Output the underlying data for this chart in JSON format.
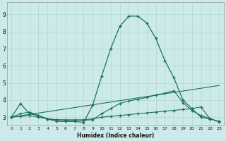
{
  "xlabel": "Humidex (Indice chaleur)",
  "background_color": "#cdeaea",
  "grid_color": "#b8d8d8",
  "line_color": "#1a7060",
  "xlim": [
    -0.5,
    23.5
  ],
  "ylim": [
    2.5,
    9.7
  ],
  "xticks": [
    0,
    1,
    2,
    3,
    4,
    5,
    6,
    7,
    8,
    9,
    10,
    11,
    12,
    13,
    14,
    15,
    16,
    17,
    18,
    19,
    20,
    21,
    22,
    23
  ],
  "yticks": [
    3,
    4,
    5,
    6,
    7,
    8,
    9
  ],
  "series1_x": [
    0,
    1,
    2,
    3,
    4,
    5,
    6,
    7,
    8,
    9,
    10,
    11,
    12,
    13,
    14,
    15,
    16,
    17,
    18,
    19,
    20,
    21,
    22,
    23
  ],
  "series1_y": [
    3.0,
    3.8,
    3.2,
    3.1,
    2.9,
    2.75,
    2.75,
    2.75,
    2.7,
    3.7,
    5.4,
    7.0,
    8.3,
    8.9,
    8.9,
    8.5,
    7.6,
    6.3,
    5.3,
    4.0,
    3.5,
    3.0,
    2.9,
    2.75
  ],
  "series2_x": [
    0,
    1,
    2,
    3,
    4,
    5,
    6,
    7,
    8,
    9,
    10,
    11,
    12,
    13,
    14,
    15,
    16,
    17,
    18,
    19,
    20,
    21,
    22,
    23
  ],
  "series2_y": [
    3.0,
    3.2,
    3.3,
    3.1,
    2.9,
    2.85,
    2.85,
    2.85,
    2.85,
    2.9,
    3.0,
    3.05,
    3.1,
    3.15,
    3.2,
    3.25,
    3.3,
    3.35,
    3.4,
    3.45,
    3.5,
    3.6,
    2.9,
    2.75
  ],
  "series3_x": [
    0,
    1,
    2,
    3,
    4,
    5,
    6,
    7,
    8,
    9,
    10,
    11,
    12,
    13,
    14,
    15,
    16,
    17,
    18,
    19,
    20,
    21,
    22,
    23
  ],
  "series3_y": [
    3.0,
    3.05,
    3.1,
    3.0,
    2.9,
    2.85,
    2.82,
    2.82,
    2.82,
    2.85,
    3.2,
    3.5,
    3.8,
    3.95,
    4.05,
    4.15,
    4.3,
    4.4,
    4.55,
    3.85,
    3.38,
    3.1,
    2.92,
    2.72
  ],
  "series4_x": [
    0,
    23
  ],
  "series4_y": [
    3.0,
    4.85
  ]
}
